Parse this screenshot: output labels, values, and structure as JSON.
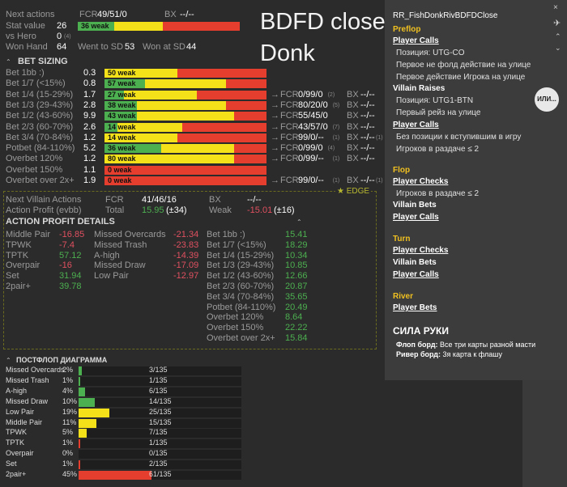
{
  "header": {
    "next_actions_label": "Next actions",
    "fcr_label": "FCR",
    "fcr_value": "49/51/0",
    "bx_label": "BX",
    "bx_value": "--/--",
    "stat_value_label": "Stat value",
    "stat_value": "26",
    "stat_bar_label": "36 weak",
    "vs_hero_label": "vs Hero",
    "vs_hero_value": "0",
    "vs_hero_sub": "(4)",
    "won_hand_label": "Won Hand",
    "won_hand_value": "64",
    "went_sd_label": "Went to SD",
    "went_sd_value": "53",
    "won_sd_label": "Won at SD",
    "won_sd_value": "44"
  },
  "overlay_title": {
    "line1": "BDFD close",
    "line2": "Donk"
  },
  "bet_sizing": {
    "title": "BET SIZING",
    "rows": [
      {
        "label": "Bet 1bb :)",
        "value": "0.3",
        "bar": "50 weak",
        "g": 0,
        "y": 0.45,
        "fcr": "",
        "fcr_sub": "",
        "bx": "",
        "bx_sub": ""
      },
      {
        "label": "Bet 1/7 (<15%)",
        "value": "0.8",
        "bar": "57 weak",
        "g": 0.25,
        "y": 0.5,
        "fcr": "",
        "fcr_sub": "",
        "bx": "",
        "bx_sub": ""
      },
      {
        "label": "Bet 1/4 (15-29%)",
        "value": "1.7",
        "bar": "27 weak",
        "g": 0.12,
        "y": 0.45,
        "fcr": "0/99/0",
        "fcr_sub": "(2)",
        "bx": "--/--",
        "bx_sub": ""
      },
      {
        "label": "Bet 1/3 (29-43%)",
        "value": "2.8",
        "bar": "38 weak",
        "g": 0.2,
        "y": 0.55,
        "fcr": "80/20/0",
        "fcr_sub": "(5)",
        "bx": "--/--",
        "bx_sub": ""
      },
      {
        "label": "Bet 1/2 (43-60%)",
        "value": "9.9",
        "bar": "43 weak",
        "g": 0.2,
        "y": 0.6,
        "fcr": "55/45/0",
        "fcr_sub": "",
        "bx": "--/--",
        "bx_sub": ""
      },
      {
        "label": "Bet 2/3 (60-70%)",
        "value": "2.6",
        "bar": "14 weak",
        "g": 0.08,
        "y": 0.4,
        "fcr": "43/57/0",
        "fcr_sub": "(7)",
        "bx": "--/--",
        "bx_sub": ""
      },
      {
        "label": "Bet 3/4 (70-84%)",
        "value": "1.2",
        "bar": "14 weak",
        "g": 0,
        "y": 0.45,
        "fcr": "99/0/--",
        "fcr_sub": "(1)",
        "bx": "--/--",
        "bx_sub": "(1)"
      },
      {
        "label": "Potbet (84-110%)",
        "value": "5.2",
        "bar": "36 weak",
        "g": 0.35,
        "y": 0.45,
        "fcr": "0/99/0",
        "fcr_sub": "(4)",
        "bx": "--/--",
        "bx_sub": ""
      },
      {
        "label": "Overbet 120%",
        "value": "1.2",
        "bar": "80 weak",
        "g": 0,
        "y": 0.8,
        "fcr": "0/99/--",
        "fcr_sub": "(1)",
        "bx": "--/--",
        "bx_sub": ""
      },
      {
        "label": "Overbet 150%",
        "value": "1.1",
        "bar": "0 weak",
        "g": 0,
        "y": 0,
        "fcr": "",
        "fcr_sub": "",
        "bx": "",
        "bx_sub": ""
      },
      {
        "label": "Overbet over 2x+",
        "value": "1.9",
        "bar": "0 weak",
        "g": 0,
        "y": 0,
        "fcr": "99/0/--",
        "fcr_sub": "(1)",
        "bx": "--/--",
        "bx_sub": "(1)"
      }
    ],
    "arrow": "→",
    "edge_label": "EDGE"
  },
  "villain_actions": {
    "next_label": "Next Villain Actions",
    "fcr_label": "FCR",
    "fcr_value": "41/46/16",
    "bx_label": "BX",
    "bx_value": "--/--",
    "profit_label": "Action Profit (evbb)",
    "total_label": "Total",
    "total_value": "15.95",
    "total_sub": "(±34)",
    "weak_label": "Weak",
    "weak_value": "-15.01",
    "weak_sub": "(±16)"
  },
  "action_profit": {
    "title": "ACTION PROFIT DETAILS",
    "col1": [
      {
        "label": "Middle Pair",
        "value": "-16.85",
        "pos": false
      },
      {
        "label": "TPWK",
        "value": "-7.4",
        "pos": false
      },
      {
        "label": "TPTK",
        "value": "57.12",
        "pos": true
      },
      {
        "label": "Overpair",
        "value": "-16",
        "pos": false
      },
      {
        "label": "Set",
        "value": "31.94",
        "pos": true
      },
      {
        "label": "2pair+",
        "value": "39.78",
        "pos": true
      }
    ],
    "col2": [
      {
        "label": "Missed Overcards",
        "value": "-21.34",
        "pos": false
      },
      {
        "label": "Missed Trash",
        "value": "-23.83",
        "pos": false
      },
      {
        "label": "A-high",
        "value": "-14.39",
        "pos": false
      },
      {
        "label": "Missed Draw",
        "value": "-17.09",
        "pos": false
      },
      {
        "label": "Low Pair",
        "value": "-12.97",
        "pos": false
      }
    ],
    "col3": [
      {
        "label": "Bet 1bb :)",
        "value": "15.41"
      },
      {
        "label": "Bet 1/7 (<15%)",
        "value": "18.29"
      },
      {
        "label": "Bet 1/4 (15-29%)",
        "value": "10.34"
      },
      {
        "label": "Bet 1/3 (29-43%)",
        "value": "10.85"
      },
      {
        "label": "Bet 1/2 (43-60%)",
        "value": "12.66"
      },
      {
        "label": "Bet 2/3 (60-70%)",
        "value": "20.87"
      },
      {
        "label": "Bet 3/4 (70-84%)",
        "value": "35.65"
      },
      {
        "label": "Potbet (84-110%)",
        "value": "20.49"
      },
      {
        "label": "Overbet 120%",
        "value": "8.64"
      },
      {
        "label": "Overbet 150%",
        "value": "22.22"
      },
      {
        "label": "Overbet over 2x+",
        "value": "15.84"
      }
    ]
  },
  "postflop": {
    "title": "ПОСТФЛОП ДИАГРАММА",
    "rows": [
      {
        "label": "Missed Overcards",
        "pct": "2%",
        "frac": 0.02,
        "count": "3/135",
        "color": "#4caf50"
      },
      {
        "label": "Missed Trash",
        "pct": "1%",
        "frac": 0.01,
        "count": "1/135",
        "color": "#4caf50"
      },
      {
        "label": "A-high",
        "pct": "4%",
        "frac": 0.04,
        "count": "6/135",
        "color": "#4caf50"
      },
      {
        "label": "Missed Draw",
        "pct": "10%",
        "frac": 0.1,
        "count": "14/135",
        "color": "#4caf50"
      },
      {
        "label": "Low Pair",
        "pct": "19%",
        "frac": 0.19,
        "count": "25/135",
        "color": "#f4e11a"
      },
      {
        "label": "Middle Pair",
        "pct": "11%",
        "frac": 0.11,
        "count": "15/135",
        "color": "#f4e11a"
      },
      {
        "label": "TPWK",
        "pct": "5%",
        "frac": 0.05,
        "count": "7/135",
        "color": "#f4e11a"
      },
      {
        "label": "TPTK",
        "pct": "1%",
        "frac": 0.01,
        "count": "1/135",
        "color": "#e53e2f"
      },
      {
        "label": "Overpair",
        "pct": "0%",
        "frac": 0,
        "count": "0/135",
        "color": "#e53e2f"
      },
      {
        "label": "Set",
        "pct": "1%",
        "frac": 0.01,
        "count": "2/135",
        "color": "#e53e2f"
      },
      {
        "label": "2pair+",
        "pct": "45%",
        "frac": 0.45,
        "count": "61/135",
        "color": "#e53e2f"
      }
    ]
  },
  "right_panel": {
    "title": "RR_FishDonkRivBDFDClose",
    "preflop": "Preflop",
    "pf_player_calls": "Player Calls",
    "pf_pos": "Позиция: UTG-CO",
    "pf_first_not_fold": "Первое не фолд действие на улице",
    "pf_first_player_action": "Первое действие Игрока на улице",
    "villain_raises": "Villain Raises",
    "vr_pos": "Позиция: UTG1-BTN",
    "vr_first_raise": "Первый рейз на улице",
    "pf_player_calls2": "Player Calls",
    "pc2_no_positions": "Без позиции к вступившим в игру",
    "pc2_players": "Игроков в раздаче ≤ 2",
    "ili_button": "ИЛИ...",
    "flop": "Flop",
    "fl_player_checks": "Player Checks",
    "fl_players": "Игроков в раздаче ≤ 2",
    "fl_villain_bets": "Villain Bets",
    "fl_player_calls": "Player Calls",
    "turn": "Turn",
    "tu_player_checks": "Player Checks",
    "tu_villain_bets": "Villain Bets",
    "tu_player_calls": "Player Calls",
    "river": "River",
    "ri_player_bets": "Player Bets",
    "hand_strength": "СИЛА РУКИ",
    "flop_board_label": "Флоп борд:",
    "flop_board_value": "Все три карты разной масти",
    "river_board_label": "Ривер борд:",
    "river_board_value": "3я карта к флашу"
  }
}
